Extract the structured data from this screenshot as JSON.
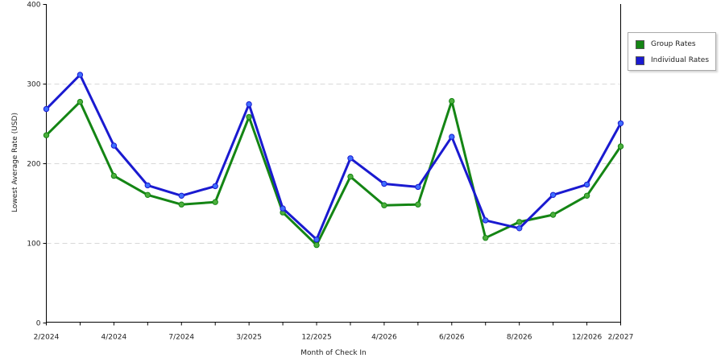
{
  "chart_data": {
    "type": "line",
    "xlabel": "Month of Check In",
    "ylabel": "Lowest Average Rate (USD)",
    "ylim": [
      0,
      400
    ],
    "yticks": [
      0,
      100,
      200,
      300,
      400
    ],
    "grid": true,
    "legend_position": "right",
    "x_tick_labels": [
      "2/2024",
      "4/2024",
      "7/2024",
      "3/2025",
      "12/2025",
      "4/2026",
      "6/2026",
      "8/2026",
      "12/2026",
      "2/2027"
    ],
    "series": [
      {
        "name": "Group Rates",
        "color": "#148514",
        "marker_color": "#4caf3c",
        "values": [
          235,
          277,
          184,
          160,
          148,
          151,
          258,
          138,
          97,
          183,
          147,
          148,
          278,
          106,
          126,
          135,
          159,
          221
        ]
      },
      {
        "name": "Individual Rates",
        "color": "#1a1ad0",
        "marker_color": "#3f6fff",
        "values": [
          268,
          311,
          222,
          172,
          159,
          171,
          274,
          143,
          104,
          206,
          174,
          170,
          233,
          128,
          118,
          160,
          173,
          250
        ]
      }
    ]
  }
}
